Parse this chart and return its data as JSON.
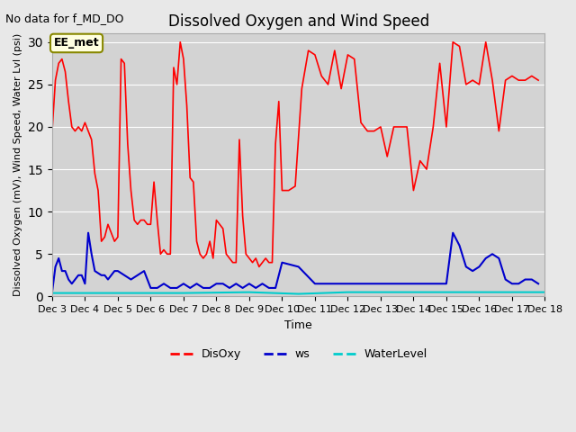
{
  "title": "Dissolved Oxygen and Wind Speed",
  "subtitle": "No data for f_MD_DO",
  "xlabel": "Time",
  "ylabel": "Dissolved Oxygen (mV), Wind Speed, Water Lvl (psi)",
  "annotation": "EE_met",
  "ylim": [
    0,
    31
  ],
  "yticks": [
    0,
    5,
    10,
    15,
    20,
    25,
    30
  ],
  "background_color": "#e8e8e8",
  "plot_bg_color": "#d8d8d8",
  "disoxy_color": "#ff0000",
  "ws_color": "#0000cc",
  "waterlevel_color": "#00cccc",
  "legend_labels": [
    "DisOxy",
    "ws",
    "WaterLevel"
  ],
  "x_tick_labels": [
    "Dec 3",
    "Dec 4",
    "Dec 5",
    "Dec 6",
    "Dec 7",
    "Dec 8",
    "Dec 9",
    "Dec 10",
    "Dec 11",
    "Dec 12",
    "Dec 13",
    "Dec 14",
    "Dec 15",
    "Dec 16",
    "Dec 17",
    "Dec 18"
  ],
  "disoxy_x": [
    3,
    3.1,
    3.2,
    3.3,
    3.4,
    3.5,
    3.6,
    3.7,
    3.8,
    3.9,
    4.0,
    4.1,
    4.2,
    4.3,
    4.4,
    4.5,
    4.6,
    4.7,
    4.8,
    4.9,
    5.0,
    5.1,
    5.2,
    5.3,
    5.4,
    5.5,
    5.6,
    5.7,
    5.8,
    5.9,
    6.0,
    6.1,
    6.2,
    6.3,
    6.4,
    6.5,
    6.6,
    6.7,
    6.8,
    6.9,
    7.0,
    7.1,
    7.2,
    7.3,
    7.4,
    7.5,
    7.6,
    7.7,
    7.8,
    7.9,
    8.0,
    8.1,
    8.2,
    8.3,
    8.4,
    8.5,
    8.6,
    8.7,
    8.8,
    8.9,
    9.0,
    9.1,
    9.2,
    9.3,
    9.4,
    9.5,
    9.6,
    9.7,
    9.8,
    9.9,
    10.0,
    10.2,
    10.4,
    10.6,
    10.8,
    11.0,
    11.2,
    11.4,
    11.6,
    11.8,
    12.0,
    12.2,
    12.4,
    12.6,
    12.8,
    13.0,
    13.2,
    13.4,
    13.6,
    13.8,
    14.0,
    14.2,
    14.4,
    14.6,
    14.8,
    15.0,
    15.2,
    15.4,
    15.6,
    15.8,
    16.0,
    16.2,
    16.4,
    16.6,
    16.8,
    17.0,
    17.2,
    17.4,
    17.6,
    17.8
  ],
  "disoxy_y": [
    19.5,
    25.5,
    27.5,
    28.0,
    26.5,
    23.0,
    20.0,
    19.5,
    20.0,
    19.5,
    20.5,
    19.5,
    18.5,
    14.5,
    12.5,
    6.5,
    7.0,
    8.5,
    7.5,
    6.5,
    7.0,
    28.0,
    27.5,
    18.0,
    12.5,
    9.0,
    8.5,
    9.0,
    9.0,
    8.5,
    8.5,
    13.5,
    9.0,
    5.0,
    5.5,
    5.0,
    5.0,
    27.0,
    25.0,
    30.0,
    28.0,
    22.5,
    14.0,
    13.5,
    6.5,
    5.0,
    4.5,
    5.0,
    6.5,
    4.5,
    9.0,
    8.5,
    8.0,
    5.0,
    4.5,
    4.0,
    4.0,
    18.5,
    9.5,
    5.0,
    4.5,
    4.0,
    4.5,
    3.5,
    4.0,
    4.5,
    4.0,
    4.0,
    18.0,
    23.0,
    12.5,
    12.5,
    13.0,
    24.5,
    29.0,
    28.5,
    26.0,
    25.0,
    29.0,
    24.5,
    28.5,
    28.0,
    20.5,
    19.5,
    19.5,
    20.0,
    16.5,
    20.0,
    20.0,
    20.0,
    12.5,
    16.0,
    15.0,
    20.0,
    27.5,
    20.0,
    30.0,
    29.5,
    25.0,
    25.5,
    25.0,
    30.0,
    25.5,
    19.5,
    25.5,
    26.0,
    25.5,
    25.5,
    26.0,
    25.5
  ],
  "ws_x": [
    3.0,
    3.1,
    3.2,
    3.3,
    3.4,
    3.5,
    3.6,
    3.7,
    3.8,
    3.9,
    4.0,
    4.1,
    4.2,
    4.3,
    4.5,
    4.6,
    4.7,
    4.8,
    4.9,
    5.0,
    5.2,
    5.4,
    5.6,
    5.8,
    6.0,
    6.2,
    6.4,
    6.6,
    6.8,
    7.0,
    7.2,
    7.4,
    7.6,
    7.8,
    8.0,
    8.2,
    8.4,
    8.6,
    8.8,
    9.0,
    9.2,
    9.4,
    9.6,
    9.8,
    10.0,
    10.5,
    11.0,
    11.5,
    12.0,
    12.5,
    13.0,
    13.5,
    14.0,
    14.5,
    15.0,
    15.2,
    15.4,
    15.6,
    15.8,
    16.0,
    16.2,
    16.4,
    16.6,
    16.8,
    17.0,
    17.2,
    17.4,
    17.6,
    17.8
  ],
  "ws_y": [
    0.5,
    3.5,
    4.5,
    3.0,
    3.0,
    2.0,
    1.5,
    2.0,
    2.5,
    2.5,
    1.5,
    7.5,
    5.0,
    3.0,
    2.5,
    2.5,
    2.0,
    2.5,
    3.0,
    3.0,
    2.5,
    2.0,
    2.5,
    3.0,
    1.0,
    1.0,
    1.5,
    1.0,
    1.0,
    1.5,
    1.0,
    1.5,
    1.0,
    1.0,
    1.5,
    1.5,
    1.0,
    1.5,
    1.0,
    1.5,
    1.0,
    1.5,
    1.0,
    1.0,
    4.0,
    3.5,
    1.5,
    1.5,
    1.5,
    1.5,
    1.5,
    1.5,
    1.5,
    1.5,
    1.5,
    7.5,
    6.0,
    3.5,
    3.0,
    3.5,
    4.5,
    5.0,
    4.5,
    2.0,
    1.5,
    1.5,
    2.0,
    2.0,
    1.5
  ],
  "wl_x": [
    3.0,
    5.0,
    7.0,
    9.0,
    10.5,
    12.0,
    13.5,
    15.0,
    17.0,
    18.0
  ],
  "wl_y": [
    0.4,
    0.4,
    0.4,
    0.5,
    0.3,
    0.5,
    0.5,
    0.5,
    0.5,
    0.5
  ]
}
